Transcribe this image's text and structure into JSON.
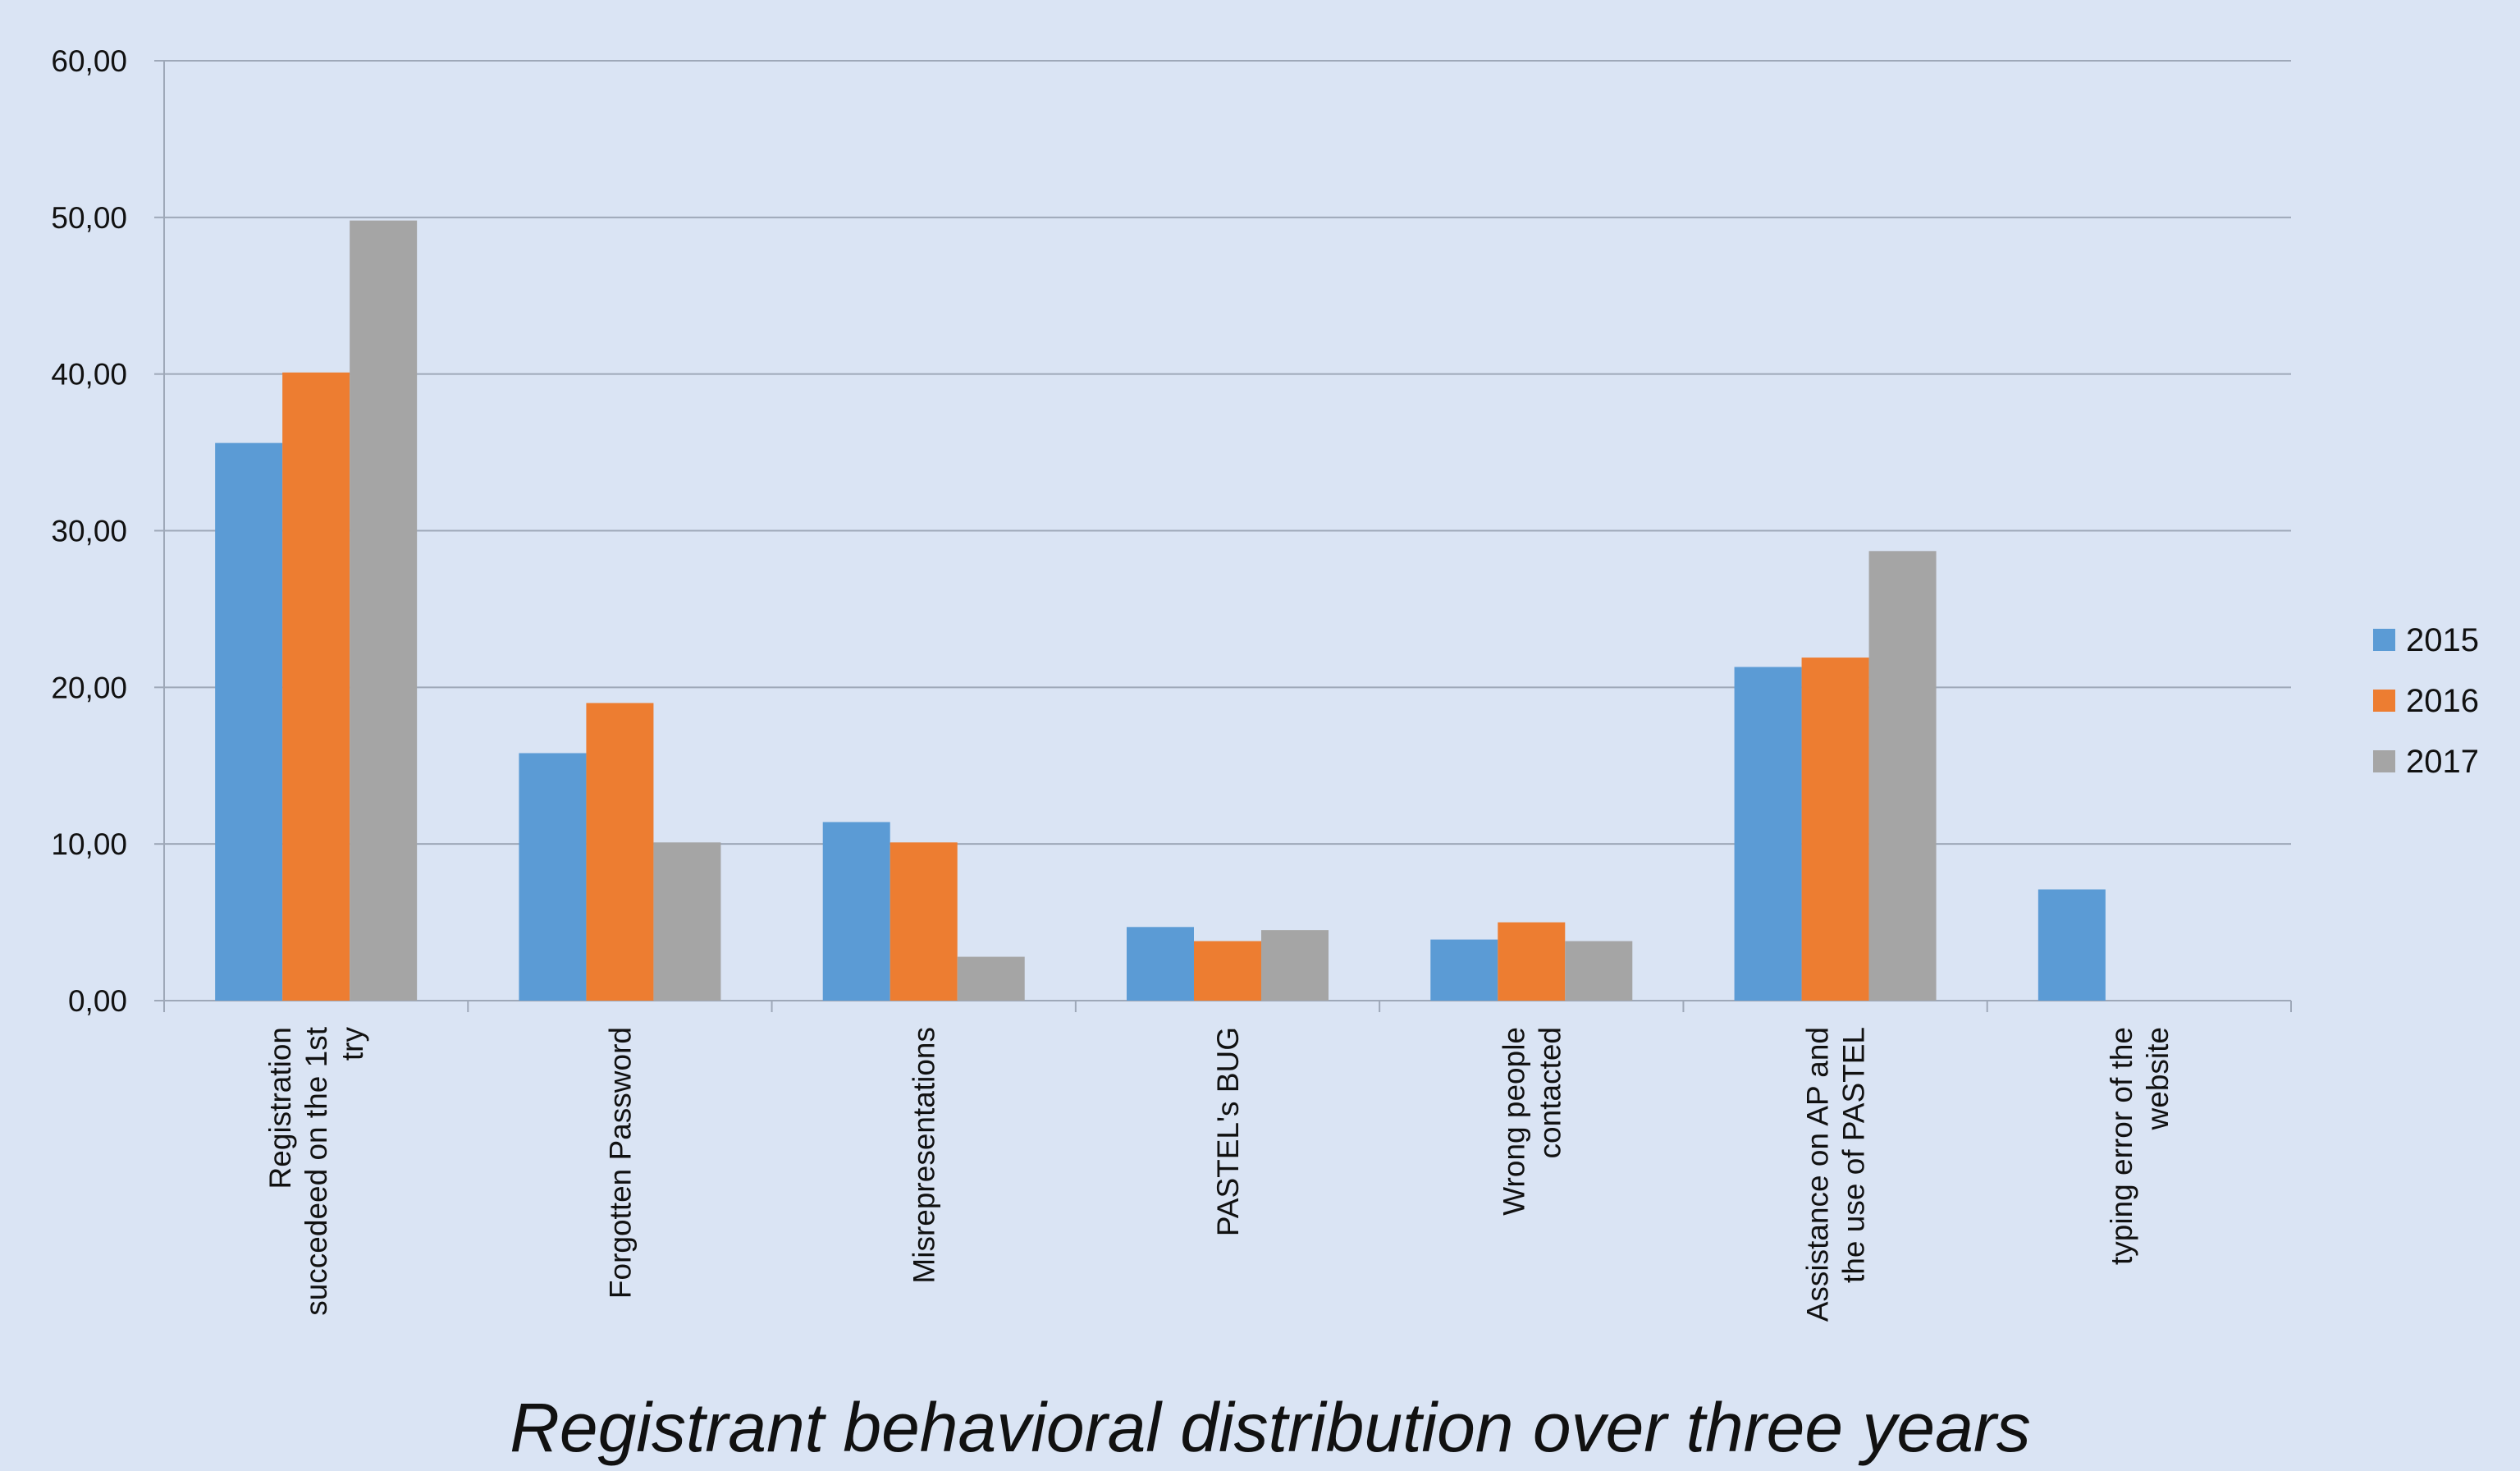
{
  "chart_data": {
    "type": "bar",
    "title": "Registrant behavioral distribution over three years",
    "categories": [
      [
        "Registration",
        "succedeed on the 1st",
        "try"
      ],
      [
        "Forgotten Password"
      ],
      [
        "Misrepresentations"
      ],
      [
        "PASTEL's  BUG"
      ],
      [
        "Wrong people",
        "contacted"
      ],
      [
        "Assistance on AP and",
        "the use of PASTEL"
      ],
      [
        "typing error of the",
        "website"
      ]
    ],
    "series": [
      {
        "name": "2015",
        "color": "#5b9bd5",
        "values": [
          35.6,
          15.8,
          11.4,
          4.7,
          3.9,
          21.3,
          7.1
        ]
      },
      {
        "name": "2016",
        "color": "#ed7d31",
        "values": [
          40.1,
          19.0,
          10.1,
          3.8,
          5.0,
          21.9,
          0
        ]
      },
      {
        "name": "2017",
        "color": "#a5a5a5",
        "values": [
          49.8,
          10.1,
          2.8,
          4.5,
          3.8,
          28.7,
          0
        ]
      }
    ],
    "ylim": [
      0,
      60
    ],
    "yticks": [
      0,
      10,
      20,
      30,
      40,
      50,
      60
    ],
    "ytick_labels": [
      "0,00",
      "10,00",
      "20,00",
      "30,00",
      "40,00",
      "50,00",
      "60,00"
    ],
    "xlabel": "",
    "ylabel": "",
    "grid": true,
    "legend_position": "right"
  }
}
